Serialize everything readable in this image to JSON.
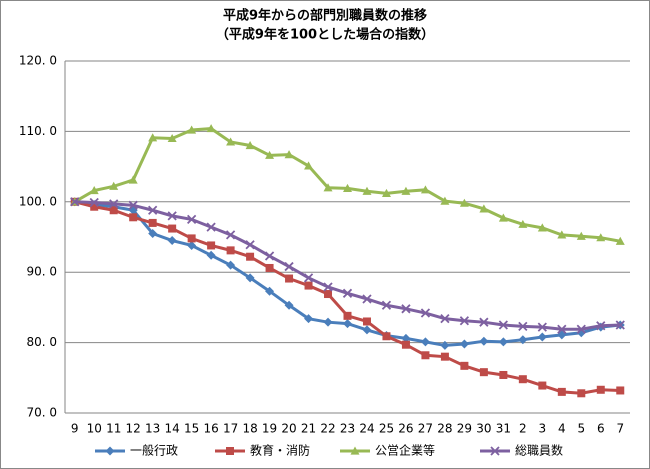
{
  "chart_data": {
    "type": "line",
    "title": "平成9年からの部門別職員数の推移",
    "subtitle": "（平成9年を100とした場合の指数）",
    "categories": [
      "9",
      "10",
      "11",
      "12",
      "13",
      "14",
      "15",
      "16",
      "17",
      "18",
      "19",
      "20",
      "21",
      "22",
      "23",
      "24",
      "25",
      "26",
      "27",
      "28",
      "29",
      "30",
      "31",
      "2",
      "3",
      "4",
      "5",
      "6",
      "7"
    ],
    "series": [
      {
        "name": "一般行政",
        "color": "#4a7ebb",
        "marker": "diamond",
        "values": [
          100,
          99.6,
          99.3,
          98.8,
          95.5,
          94.5,
          93.8,
          92.4,
          91.0,
          89.2,
          87.3,
          85.3,
          83.4,
          82.9,
          82.7,
          81.8,
          81.0,
          80.6,
          80.1,
          79.6,
          79.8,
          80.2,
          80.1,
          80.4,
          80.8,
          81.1,
          81.4,
          82.2,
          82.5
        ]
      },
      {
        "name": "教育・消防",
        "color": "#be4b48",
        "marker": "square",
        "values": [
          100,
          99.3,
          98.8,
          97.8,
          97.0,
          96.2,
          94.8,
          93.8,
          93.1,
          92.2,
          90.6,
          89.1,
          88.1,
          86.9,
          83.8,
          83.0,
          80.9,
          79.7,
          78.2,
          78.0,
          76.7,
          75.8,
          75.4,
          74.8,
          73.9,
          73.0,
          72.8,
          73.3,
          73.2
        ]
      },
      {
        "name": "公営企業等",
        "color": "#98b954",
        "marker": "triangle",
        "values": [
          100,
          101.6,
          102.2,
          103.1,
          109.1,
          109.0,
          110.2,
          110.4,
          108.5,
          108.0,
          106.6,
          106.7,
          105.1,
          102.0,
          101.9,
          101.5,
          101.2,
          101.5,
          101.7,
          100.1,
          99.8,
          99.0,
          97.7,
          96.8,
          96.3,
          95.3,
          95.1,
          94.9,
          94.4
        ]
      },
      {
        "name": "総職員数",
        "color": "#7d60a0",
        "marker": "x",
        "values": [
          100,
          99.9,
          99.7,
          99.5,
          98.8,
          98.0,
          97.5,
          96.4,
          95.3,
          93.9,
          92.3,
          90.8,
          89.2,
          87.9,
          87.0,
          86.2,
          85.3,
          84.8,
          84.2,
          83.4,
          83.1,
          82.9,
          82.5,
          82.3,
          82.2,
          81.9,
          81.9,
          82.4,
          82.5
        ]
      }
    ],
    "ylim": [
      70,
      120
    ],
    "yticks": [
      {
        "value": 70,
        "label": "70. 0"
      },
      {
        "value": 80,
        "label": "80. 0"
      },
      {
        "value": 90,
        "label": "90. 0"
      },
      {
        "value": 100,
        "label": "100. 0"
      },
      {
        "value": 110,
        "label": "110. 0"
      },
      {
        "value": 120,
        "label": "120. 0"
      }
    ],
    "grid": true,
    "legend": "bottom"
  }
}
